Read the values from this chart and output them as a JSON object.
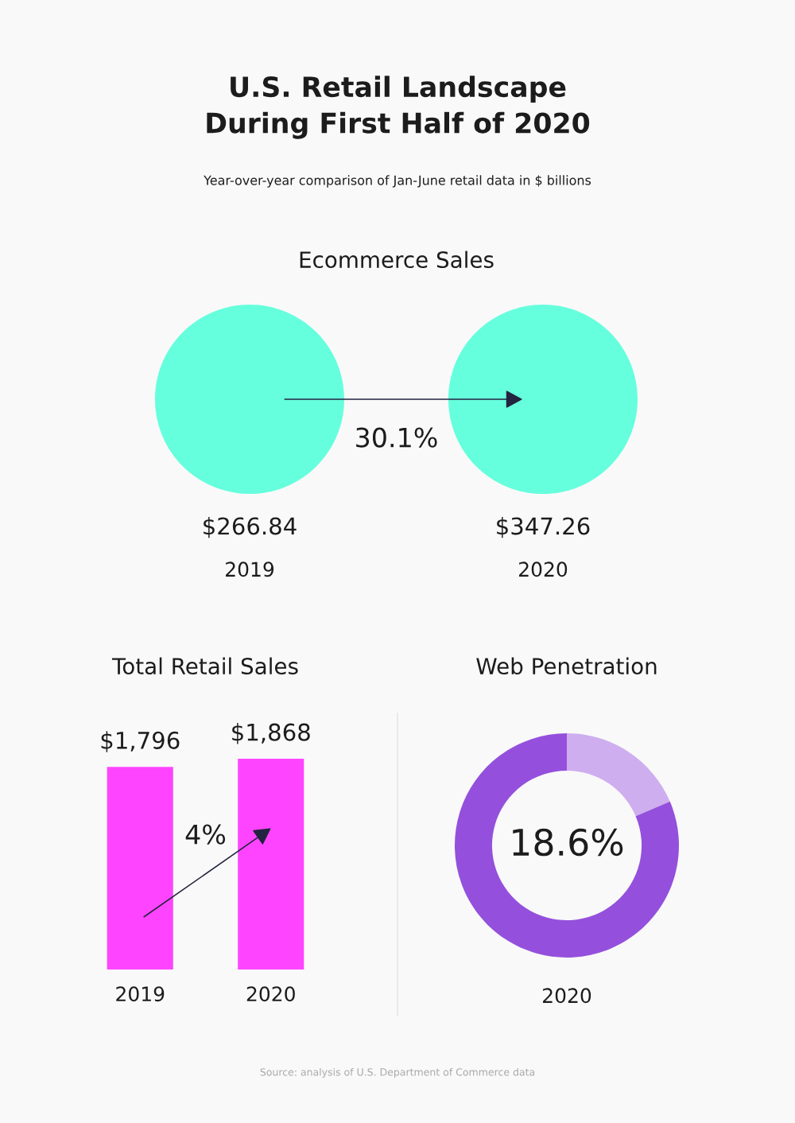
{
  "chart_data": [
    {
      "type": "other",
      "title": "U.S. Retail Landscape\nDuring First Half of 2020",
      "subtitle": "Year-over-year comparison of Jan-June retail data in $ billions",
      "annotations": [
        "Source: analysis of U.S. Department of Commerce data"
      ]
    },
    {
      "type": "other",
      "title": "Ecommerce Sales",
      "categories": [
        "2019",
        "2020"
      ],
      "values": [
        266.84,
        347.26
      ],
      "value_labels": [
        "$266.84",
        "$347.26"
      ],
      "color": "#66ffdd",
      "annotations": [
        "30.1%"
      ]
    },
    {
      "type": "bar",
      "title": "Total Retail Sales",
      "categories": [
        "2019",
        "2020"
      ],
      "values": [
        1796,
        1868
      ],
      "value_labels": [
        "$1,796",
        "$1,868"
      ],
      "color": "#ff44ff",
      "annotations": [
        "4%"
      ]
    },
    {
      "type": "donut",
      "title": "Web Penetration",
      "xlabel": "2020",
      "categories": [
        null,
        null
      ],
      "values": [
        18.6,
        81.4
      ],
      "colors": [
        "#ceaeef",
        "#9450dc"
      ],
      "annotations": [
        "18.6%"
      ]
    }
  ]
}
